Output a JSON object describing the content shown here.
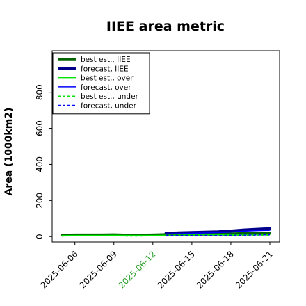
{
  "chart_data": {
    "type": "line",
    "title": "IIEE area metric",
    "xlabel": "",
    "ylabel": "Area (1000km2)",
    "x": [
      "2025-06-05",
      "2025-06-06",
      "2025-06-07",
      "2025-06-08",
      "2025-06-09",
      "2025-06-10",
      "2025-06-11",
      "2025-06-12",
      "2025-06-13",
      "2025-06-14",
      "2025-06-15",
      "2025-06-16",
      "2025-06-17",
      "2025-06-18",
      "2025-06-19",
      "2025-06-20",
      "2025-06-21"
    ],
    "xticks": [
      "2025-06-06",
      "2025-06-09",
      "2025-06-12",
      "2025-06-15",
      "2025-06-18",
      "2025-06-21"
    ],
    "xtick_colors": [
      "#000000",
      "#000000",
      "#2ca02c",
      "#000000",
      "#000000",
      "#000000"
    ],
    "yticks": [
      0,
      200,
      400,
      600,
      800
    ],
    "ylim": [
      -30,
      1030
    ],
    "grid": false,
    "legend_position": "top-left",
    "series": [
      {
        "name": "best est., IIEE",
        "color": "#006400",
        "style": "solid",
        "width": 3.5,
        "values": [
          8,
          10,
          10,
          10,
          11,
          9,
          9,
          10,
          12,
          13,
          14,
          14,
          15,
          16,
          18,
          20,
          20
        ]
      },
      {
        "name": "forecast, IIEE",
        "color": "#00008b",
        "style": "solid",
        "width": 3.5,
        "values": [
          null,
          null,
          null,
          null,
          null,
          null,
          null,
          null,
          20,
          22,
          24,
          26,
          28,
          32,
          38,
          42,
          45
        ]
      },
      {
        "name": "best est., over",
        "color": "#00e600",
        "style": "solid",
        "width": 1.5,
        "values": [
          5,
          6,
          6,
          6,
          7,
          6,
          6,
          6,
          7,
          8,
          9,
          9,
          10,
          10,
          11,
          12,
          12
        ]
      },
      {
        "name": "forecast, over",
        "color": "#0000ff",
        "style": "solid",
        "width": 1.5,
        "values": [
          null,
          null,
          null,
          null,
          null,
          null,
          null,
          null,
          14,
          16,
          18,
          20,
          22,
          25,
          30,
          33,
          35
        ]
      },
      {
        "name": "best est., under",
        "color": "#00e600",
        "style": "dashed",
        "width": 1.5,
        "values": [
          3,
          4,
          4,
          4,
          4,
          3,
          3,
          4,
          5,
          5,
          5,
          5,
          5,
          6,
          7,
          8,
          8
        ]
      },
      {
        "name": "forecast, under",
        "color": "#0000ff",
        "style": "dashed",
        "width": 1.5,
        "values": [
          null,
          null,
          null,
          null,
          null,
          null,
          null,
          null,
          6,
          6,
          6,
          6,
          6,
          7,
          8,
          9,
          10
        ]
      }
    ]
  },
  "colors": {
    "frame": "#000000",
    "background": "#ffffff"
  }
}
